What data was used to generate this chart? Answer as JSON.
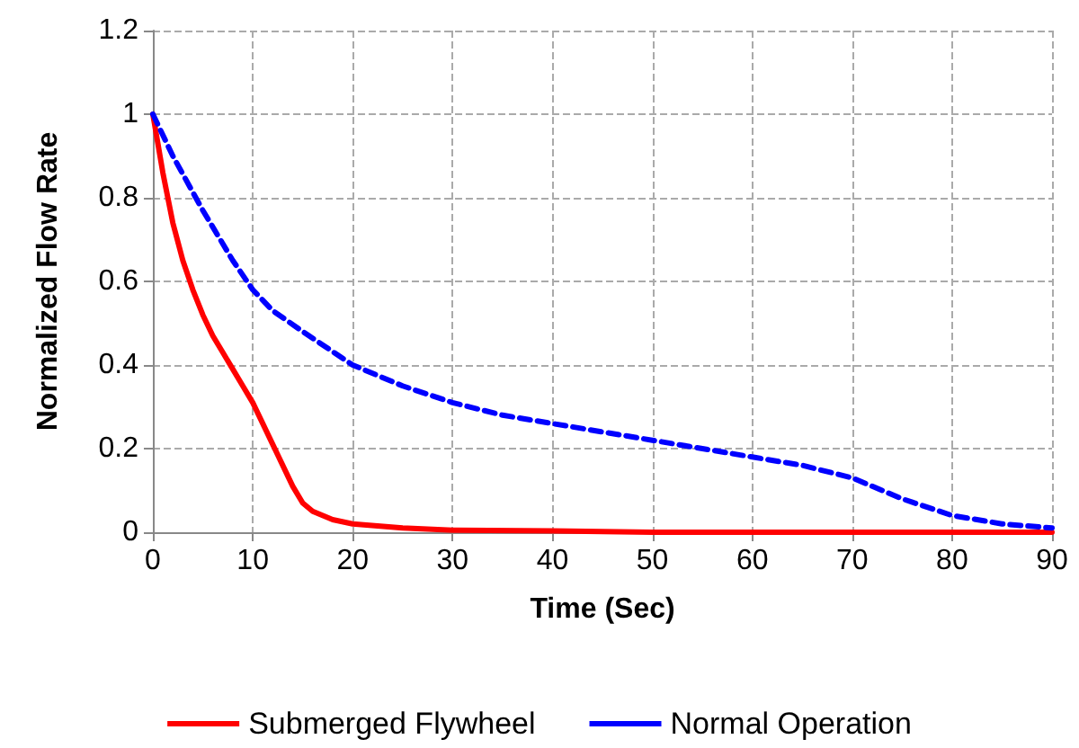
{
  "chart_data": {
    "type": "line",
    "xlabel": "Time (Sec)",
    "ylabel": "Normalized Flow Rate",
    "xlim": [
      0,
      90
    ],
    "xticks": [
      0,
      10,
      20,
      30,
      40,
      50,
      60,
      70,
      80,
      90
    ],
    "ylim": [
      0,
      1.2
    ],
    "yticks": [
      0,
      0.2,
      0.4,
      0.6,
      0.8,
      1,
      1.2
    ],
    "grid": true,
    "legend": "bottom",
    "marker": "none",
    "series": [
      {
        "name": "Submerged Flywheel",
        "color": "#ff0000",
        "line_style": "solid",
        "x": [
          0,
          1,
          2,
          3,
          4,
          5,
          6,
          7,
          8,
          9,
          10,
          11,
          12,
          13,
          14,
          15,
          16,
          18,
          20,
          25,
          30,
          40,
          50,
          60,
          70,
          80,
          90
        ],
        "values": [
          1,
          0.86,
          0.74,
          0.65,
          0.58,
          0.52,
          0.47,
          0.43,
          0.39,
          0.35,
          0.31,
          0.26,
          0.21,
          0.16,
          0.11,
          0.07,
          0.05,
          0.03,
          0.02,
          0.01,
          0.005,
          0.003,
          0,
          0,
          0,
          0,
          0
        ]
      },
      {
        "name": "Normal Operation",
        "color": "#0000ff",
        "line_style": "dashed",
        "x": [
          0,
          2,
          5,
          8,
          10,
          12,
          15,
          20,
          25,
          30,
          35,
          40,
          45,
          50,
          55,
          60,
          65,
          70,
          75,
          80,
          85,
          90
        ],
        "values": [
          1,
          0.9,
          0.77,
          0.65,
          0.58,
          0.53,
          0.48,
          0.4,
          0.35,
          0.31,
          0.28,
          0.26,
          0.24,
          0.22,
          0.2,
          0.18,
          0.16,
          0.13,
          0.08,
          0.04,
          0.02,
          0.01
        ]
      }
    ]
  }
}
